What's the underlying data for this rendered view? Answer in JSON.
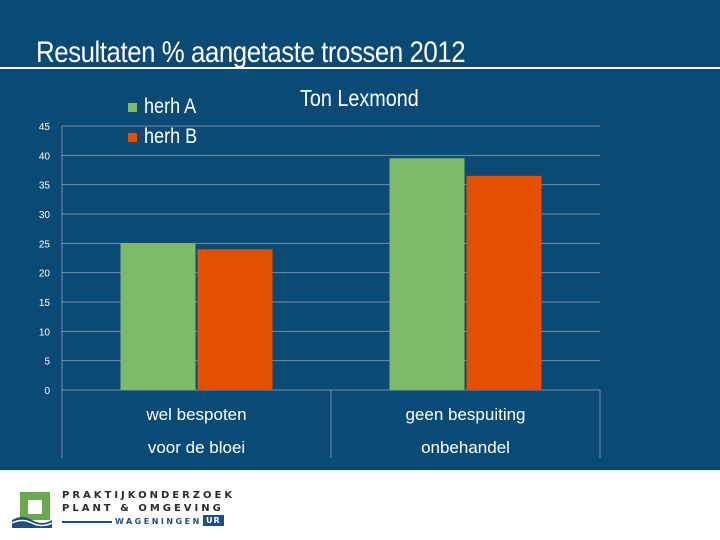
{
  "title": "Resultaten  % aangetaste trossen 2012",
  "author": "Ton Lexmond",
  "chart_data": {
    "type": "bar",
    "title": "Resultaten  % aangetaste trossen 2012",
    "categories": [
      [
        "wel bespoten",
        "voor de bloei"
      ],
      [
        "geen bespuiting",
        "onbehandel"
      ]
    ],
    "series": [
      {
        "name": "herh A",
        "color": "#7fba6a",
        "values": [
          25,
          39.5
        ]
      },
      {
        "name": "herh B",
        "color": "#e35000",
        "values": [
          24,
          36.5
        ]
      }
    ],
    "ylim": [
      0,
      45
    ],
    "yticks": [
      0,
      5,
      10,
      15,
      20,
      25,
      30,
      35,
      40,
      45
    ],
    "xlabel": "",
    "ylabel": "",
    "grid": true,
    "legend": "top-left"
  },
  "logo": {
    "line1": "PRAKTIJKONDERZOEK",
    "line2": "PLANT & OMGEVING",
    "line3": "WAGENINGEN",
    "badge": "UR",
    "colors": {
      "green": "#6aa84f",
      "blue": "#1f4f82"
    }
  }
}
